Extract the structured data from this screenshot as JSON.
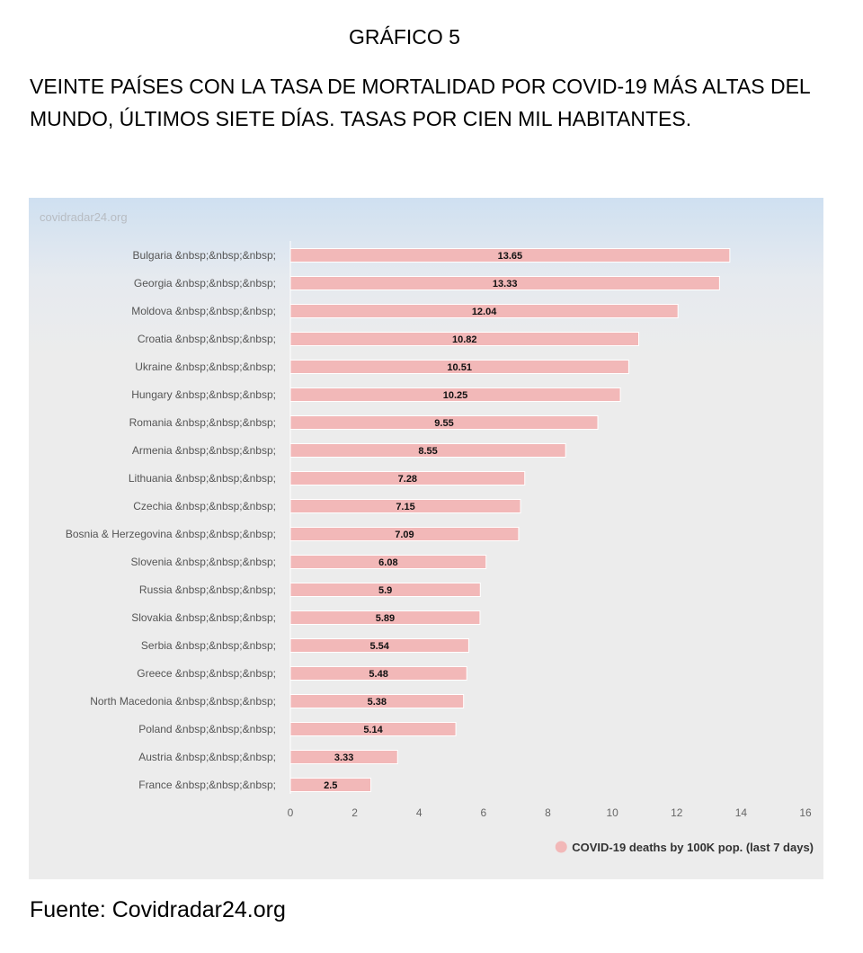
{
  "header": {
    "figure_label": "GRÁFICO 5",
    "title": "VEINTE PAÍSES CON LA TASA DE MORTALIDAD POR COVID-19 MÁS ALTAS DEL MUNDO, ÚLTIMOS SIETE DÍAS. TASAS POR CIEN MIL HABITANTES."
  },
  "watermark": "covidradar24.org",
  "source": "Fuente: Covidradar24.org",
  "colors": {
    "bar": "#f2b8b8",
    "background": "#ececec"
  },
  "chart_data": {
    "type": "bar",
    "orientation": "horizontal",
    "categories": [
      "Bulgaria &nbsp;&nbsp;&nbsp;",
      "Georgia &nbsp;&nbsp;&nbsp;",
      "Moldova &nbsp;&nbsp;&nbsp;",
      "Croatia &nbsp;&nbsp;&nbsp;",
      "Ukraine &nbsp;&nbsp;&nbsp;",
      "Hungary &nbsp;&nbsp;&nbsp;",
      "Romania &nbsp;&nbsp;&nbsp;",
      "Armenia &nbsp;&nbsp;&nbsp;",
      "Lithuania &nbsp;&nbsp;&nbsp;",
      "Czechia &nbsp;&nbsp;&nbsp;",
      "Bosnia & Herzegovina &nbsp;&nbsp;&nbsp;",
      "Slovenia &nbsp;&nbsp;&nbsp;",
      "Russia &nbsp;&nbsp;&nbsp;",
      "Slovakia &nbsp;&nbsp;&nbsp;",
      "Serbia &nbsp;&nbsp;&nbsp;",
      "Greece &nbsp;&nbsp;&nbsp;",
      "North Macedonia &nbsp;&nbsp;&nbsp;",
      "Poland &nbsp;&nbsp;&nbsp;",
      "Austria &nbsp;&nbsp;&nbsp;",
      "France &nbsp;&nbsp;&nbsp;"
    ],
    "series": [
      {
        "name": "COVID-19 deaths by 100K pop. (last 7 days)",
        "values": [
          13.65,
          13.33,
          12.04,
          10.82,
          10.51,
          10.25,
          9.55,
          8.55,
          7.28,
          7.15,
          7.09,
          6.08,
          5.9,
          5.89,
          5.54,
          5.48,
          5.38,
          5.14,
          3.33,
          2.5
        ]
      }
    ],
    "xlim": [
      0,
      16
    ],
    "xticks": [
      0,
      2,
      4,
      6,
      8,
      10,
      12,
      14,
      16
    ],
    "grid": false,
    "legend_position": "bottom-right"
  }
}
